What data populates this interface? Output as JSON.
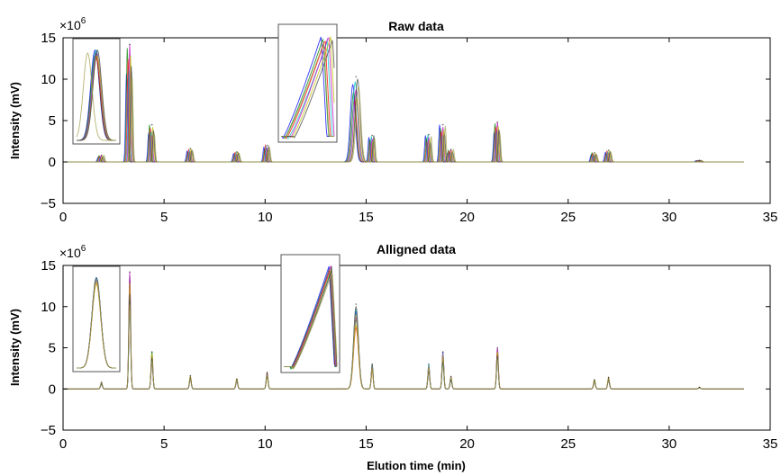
{
  "chart_data": [
    {
      "type": "line",
      "title": "Raw data",
      "ylabel": "Intensity (mV)",
      "xlabel": "",
      "y_multiplier": {
        "base": "×10",
        "exponent": "6"
      },
      "xlim": [
        0,
        35
      ],
      "ylim": [
        -5,
        15
      ],
      "xticks": [
        "0",
        "5",
        "10",
        "15",
        "20",
        "25",
        "30",
        "35"
      ],
      "yticks": [
        "−5",
        "0",
        "5",
        "10",
        "15"
      ],
      "grid": false,
      "inset_count": 2,
      "peaks_x": [
        1.9,
        3.3,
        4.4,
        6.3,
        8.6,
        10.1,
        14.5,
        15.3,
        18.1,
        18.8,
        19.2,
        21.5,
        26.3,
        27.0,
        31.5
      ],
      "peaks_y": [
        0.8,
        14.2,
        4.5,
        1.6,
        1.2,
        2.0,
        10.3,
        3.2,
        3.3,
        4.5,
        1.5,
        4.8,
        1.1,
        1.4,
        0.2
      ],
      "series_colors": [
        "#0000ff",
        "#008000",
        "#ff0000",
        "#00bfbf",
        "#bf00bf",
        "#bfbf00",
        "#404040",
        "#a0a050"
      ]
    },
    {
      "type": "line",
      "title": "Alligned data",
      "ylabel": "Intensity (mV)",
      "xlabel": "Elution time (min)",
      "y_multiplier": {
        "base": "×10",
        "exponent": "6"
      },
      "xlim": [
        0,
        35
      ],
      "ylim": [
        -5,
        15
      ],
      "xticks": [
        "0",
        "5",
        "10",
        "15",
        "20",
        "25",
        "30",
        "35"
      ],
      "yticks": [
        "−5",
        "0",
        "5",
        "10",
        "15"
      ],
      "grid": false,
      "inset_count": 2,
      "peaks_x": [
        1.9,
        3.3,
        4.4,
        6.3,
        8.6,
        10.1,
        14.5,
        15.3,
        18.1,
        18.8,
        19.2,
        21.5,
        26.3,
        27.0,
        31.5
      ],
      "peaks_y": [
        0.8,
        14.2,
        4.5,
        1.6,
        1.2,
        2.0,
        10.3,
        3.0,
        3.0,
        4.5,
        1.5,
        5.0,
        1.1,
        1.4,
        0.2
      ],
      "series_colors": [
        "#0000ff",
        "#008000",
        "#ff0000",
        "#00bfbf",
        "#bf00bf",
        "#bfbf00",
        "#404040",
        "#a0a050"
      ]
    }
  ]
}
